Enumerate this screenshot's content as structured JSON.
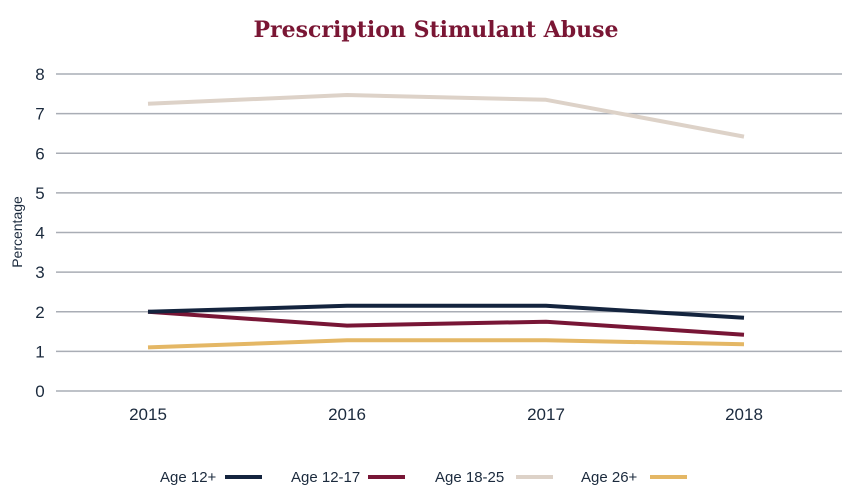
{
  "chart_data": {
    "type": "line",
    "title": "Prescription Stimulant Abuse",
    "xlabel": "",
    "ylabel": "Percentage",
    "categories": [
      "2015",
      "2016",
      "2017",
      "2018"
    ],
    "ylim": [
      0,
      8
    ],
    "yticks": [
      0,
      1,
      2,
      3,
      4,
      5,
      6,
      7,
      8
    ],
    "grid": true,
    "legend_position": "bottom",
    "series": [
      {
        "name": "Age 12+",
        "color": "#14243e",
        "values": [
          2.0,
          2.15,
          2.15,
          1.85
        ]
      },
      {
        "name": "Age 12-17",
        "color": "#781636",
        "values": [
          2.0,
          1.65,
          1.75,
          1.42
        ]
      },
      {
        "name": "Age 18-25",
        "color": "#ddd2c8",
        "values": [
          7.25,
          7.47,
          7.35,
          6.42
        ]
      },
      {
        "name": "Age 26+",
        "color": "#e4b765",
        "values": [
          1.1,
          1.28,
          1.28,
          1.18
        ]
      }
    ]
  }
}
